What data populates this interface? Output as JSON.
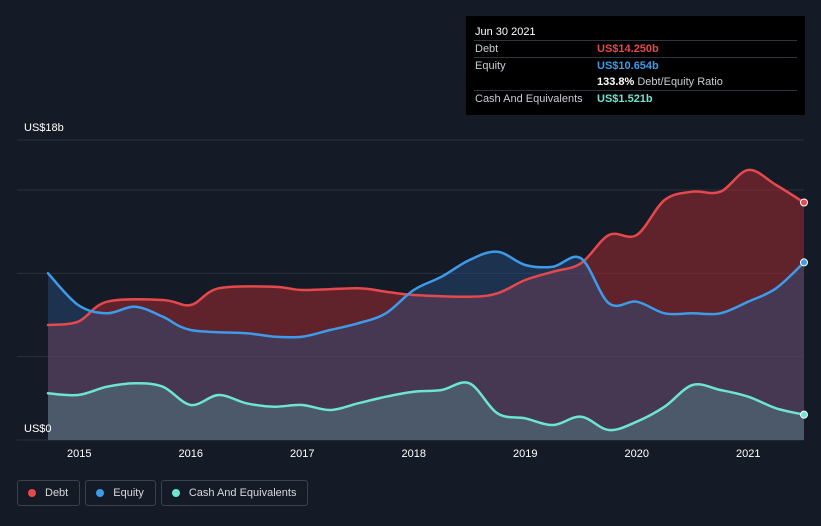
{
  "tooltip": {
    "date": "Jun 30 2021",
    "rows": [
      {
        "label": "Debt",
        "value": "US$14.250b",
        "color": "#e5484d"
      },
      {
        "label": "Equity",
        "value": "US$10.654b",
        "color": "#3d9be9"
      },
      {
        "label": "",
        "value": "133.8%",
        "extra": "Debt/Equity Ratio",
        "color": "#ffffff"
      },
      {
        "label": "Cash And Equivalents",
        "value": "US$1.521b",
        "color": "#6ee4d2"
      }
    ]
  },
  "legend": {
    "items": [
      {
        "label": "Debt",
        "color": "#e5484d"
      },
      {
        "label": "Equity",
        "color": "#3d9be9"
      },
      {
        "label": "Cash And Equivalents",
        "color": "#6ee4d2"
      }
    ]
  },
  "chart_data": {
    "type": "area",
    "ylim": [
      0,
      18
    ],
    "xlim": [
      2014.72,
      2021.5
    ],
    "y_tick_labels": [
      {
        "value": 18,
        "label": "US$18b"
      },
      {
        "value": 0,
        "label": "US$0"
      }
    ],
    "gridlines": [
      18,
      15,
      10,
      5,
      0
    ],
    "x_ticks": [
      2015,
      2016,
      2017,
      2018,
      2019,
      2020,
      2021
    ],
    "x_tick_labels": [
      "2015",
      "2016",
      "2017",
      "2018",
      "2019",
      "2020",
      "2021"
    ],
    "legend_position": "bottom-left",
    "series": [
      {
        "name": "Debt",
        "color": "#e5484d",
        "points": [
          [
            2014.72,
            6.9
          ],
          [
            2014.99,
            7.1
          ],
          [
            2015.25,
            8.3
          ],
          [
            2015.75,
            8.4
          ],
          [
            2016.0,
            8.1
          ],
          [
            2016.25,
            9.1
          ],
          [
            2016.75,
            9.2
          ],
          [
            2017.0,
            9.0
          ],
          [
            2017.5,
            9.1
          ],
          [
            2017.75,
            8.9
          ],
          [
            2018.0,
            8.7
          ],
          [
            2018.5,
            8.6
          ],
          [
            2018.75,
            8.8
          ],
          [
            2019.0,
            9.6
          ],
          [
            2019.25,
            10.1
          ],
          [
            2019.5,
            10.6
          ],
          [
            2019.75,
            12.3
          ],
          [
            2020.0,
            12.3
          ],
          [
            2020.25,
            14.4
          ],
          [
            2020.5,
            14.9
          ],
          [
            2020.75,
            14.9
          ],
          [
            2021.0,
            16.2
          ],
          [
            2021.25,
            15.3
          ],
          [
            2021.5,
            14.25
          ]
        ]
      },
      {
        "name": "Equity",
        "color": "#3d9be9",
        "points": [
          [
            2014.72,
            10.0
          ],
          [
            2014.99,
            8.1
          ],
          [
            2015.25,
            7.6
          ],
          [
            2015.5,
            8.0
          ],
          [
            2015.75,
            7.4
          ],
          [
            2016.0,
            6.6
          ],
          [
            2016.5,
            6.4
          ],
          [
            2016.75,
            6.2
          ],
          [
            2017.0,
            6.2
          ],
          [
            2017.25,
            6.6
          ],
          [
            2017.5,
            7.0
          ],
          [
            2017.75,
            7.6
          ],
          [
            2018.0,
            9.0
          ],
          [
            2018.25,
            9.8
          ],
          [
            2018.5,
            10.8
          ],
          [
            2018.75,
            11.3
          ],
          [
            2019.0,
            10.5
          ],
          [
            2019.25,
            10.4
          ],
          [
            2019.5,
            10.9
          ],
          [
            2019.75,
            8.2
          ],
          [
            2020.0,
            8.3
          ],
          [
            2020.25,
            7.6
          ],
          [
            2020.5,
            7.6
          ],
          [
            2020.75,
            7.6
          ],
          [
            2021.0,
            8.3
          ],
          [
            2021.25,
            9.1
          ],
          [
            2021.5,
            10.654
          ]
        ]
      },
      {
        "name": "Cash And Equivalents",
        "color": "#6ee4d2",
        "points": [
          [
            2014.72,
            2.8
          ],
          [
            2014.99,
            2.7
          ],
          [
            2015.25,
            3.2
          ],
          [
            2015.5,
            3.4
          ],
          [
            2015.75,
            3.2
          ],
          [
            2016.0,
            2.1
          ],
          [
            2016.25,
            2.7
          ],
          [
            2016.5,
            2.2
          ],
          [
            2016.75,
            2.0
          ],
          [
            2017.0,
            2.1
          ],
          [
            2017.25,
            1.8
          ],
          [
            2017.5,
            2.2
          ],
          [
            2017.75,
            2.6
          ],
          [
            2018.0,
            2.9
          ],
          [
            2018.25,
            3.0
          ],
          [
            2018.5,
            3.4
          ],
          [
            2018.75,
            1.6
          ],
          [
            2019.0,
            1.3
          ],
          [
            2019.25,
            0.9
          ],
          [
            2019.5,
            1.4
          ],
          [
            2019.75,
            0.6
          ],
          [
            2020.0,
            1.1
          ],
          [
            2020.25,
            2.0
          ],
          [
            2020.5,
            3.3
          ],
          [
            2020.75,
            3.0
          ],
          [
            2021.0,
            2.6
          ],
          [
            2021.25,
            1.9
          ],
          [
            2021.5,
            1.521
          ]
        ]
      }
    ]
  }
}
